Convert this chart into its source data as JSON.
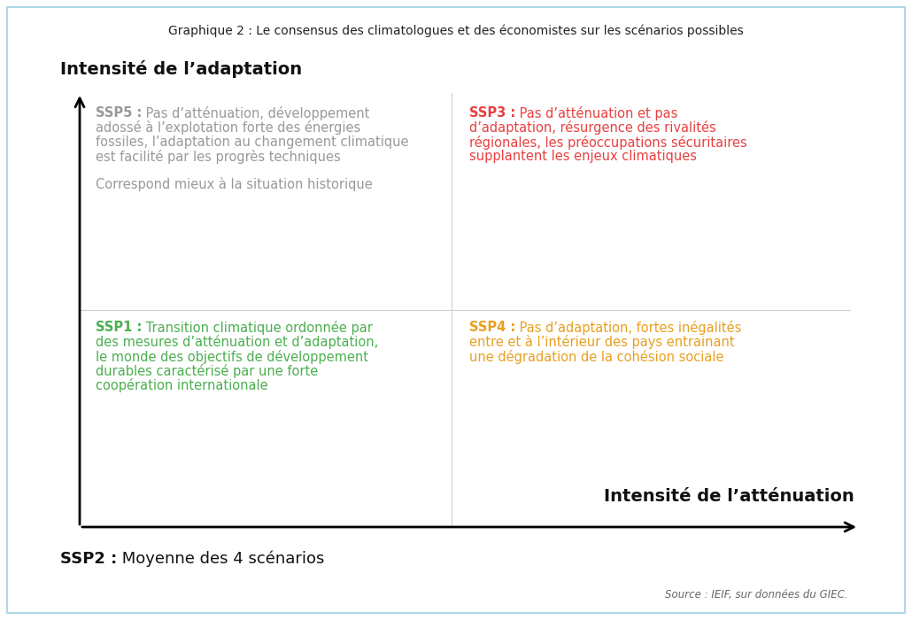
{
  "title": "Graphique 2 : Le consensus des climatologues et des économistes sur les scénarios possibles",
  "background_color": "#ffffff",
  "border_color": "#add8e6",
  "y_axis_label": "Intensité de l’adaptation",
  "x_axis_label": "Intensité de l’atténuation",
  "ssp2_bold": "SSP2 :",
  "ssp2_rest": " Moyenne des 4 scénarios",
  "source": "Source : IEIF, sur données du GIEC.",
  "ssp5_label": "SSP5 :",
  "ssp5_text": " Pas d’atténuation, développement\nadossé à l’explotation forte des énergies\nfossiles, l’adaptation au changement climatique\nest facilité par les progrès techniques",
  "ssp5_subtext": "Correspond mieux à la situation historique",
  "ssp5_color": "#999999",
  "ssp1_label": "SSP1 :",
  "ssp1_text": " Transition climatique ordonnée par\ndes mesures d’atténuation et d’adaptation,\nle monde des objectifs de développement\ndurables caractérisé par une forte\ncoopération internationale",
  "ssp1_color": "#4caf50",
  "ssp3_label": "SSP3 :",
  "ssp3_text": " Pas d’atténuation et pas\nd’adaptation, résurgence des rivalités\nrégionales, les préoccupations sécuritaires\nsupplantent les enjeux climatiques",
  "ssp3_color": "#e84040",
  "ssp4_label": "SSP4 :",
  "ssp4_text": " Pas d’adaptation, fortes inégalités\nentre et à l’intérieur des pays entrainant\nune dégradation de la cohésion sociale",
  "ssp4_color": "#e8a020"
}
